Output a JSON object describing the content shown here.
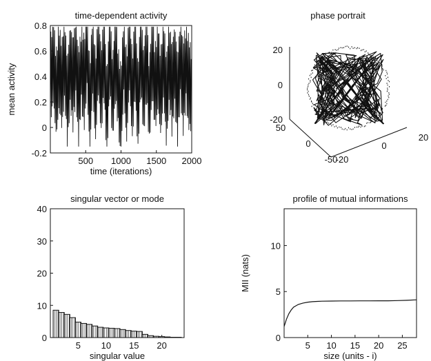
{
  "chart_data": [
    {
      "type": "line",
      "title": "time-dependent activity",
      "xlabel": "time (iterations)",
      "ylabel": "mean activity",
      "xlim": [
        0,
        2000
      ],
      "ylim": [
        -0.2,
        0.8
      ],
      "xticks": [
        500,
        1000,
        1500,
        2000
      ],
      "yticks": [
        -0.2,
        0,
        0.2,
        0.4,
        0.6,
        0.8
      ],
      "xtick_labels": [
        "500",
        "1000",
        "1500",
        "2000"
      ],
      "ytick_labels": [
        "-0.2",
        "0",
        "0.2",
        "0.4",
        "0.6",
        "0.8"
      ],
      "series": [
        {
          "description_points": "dense oscillating signal between about -0.15 and 0.8",
          "x": [
            0,
            40,
            80,
            120,
            160,
            200,
            240,
            280,
            320,
            360,
            400,
            440,
            480,
            520,
            560,
            600,
            640,
            680,
            720,
            760,
            800,
            840,
            880,
            920,
            960,
            1000,
            1040,
            1080,
            1120,
            1160,
            1200,
            1240,
            1280,
            1320,
            1360,
            1400,
            1440,
            1480,
            1520,
            1560,
            1600,
            1640,
            1680,
            1720,
            1760,
            1800,
            1840,
            1880,
            1920,
            1960,
            2000
          ],
          "values": [
            0.35,
            0.72,
            0.05,
            0.62,
            0.18,
            0.78,
            -0.1,
            0.66,
            0.22,
            0.74,
            0.02,
            0.6,
            0.3,
            0.77,
            -0.05,
            0.68,
            0.12,
            0.72,
            0.25,
            0.65,
            -0.12,
            0.75,
            0.08,
            0.7,
            0.2,
            -0.15,
            0.7,
            0.1,
            0.76,
            0.15,
            0.64,
            -0.02,
            0.73,
            0.2,
            0.68,
            0.0,
            0.75,
            0.18,
            0.62,
            0.05,
            0.78,
            -0.08,
            0.7,
            0.12,
            0.66,
            -0.05,
            0.74,
            0.2,
            0.6,
            0.3,
            0.1
          ]
        }
      ]
    },
    {
      "type": "scatter",
      "title": "phase portrait",
      "projection": "3d",
      "xlim": [
        -50,
        20
      ],
      "ylim": [
        -50,
        20
      ],
      "zlim": [
        -20,
        20
      ],
      "z_tick_labels": [
        "20",
        "0",
        "-20"
      ],
      "x_tick_labels": [
        "50",
        "0",
        "-50"
      ],
      "y_tick_labels": [
        "-20",
        "0",
        "20"
      ],
      "description_points": "dense tangled trajectory forming a roughly spherical cloud"
    },
    {
      "type": "bar",
      "title": "singular vector or mode",
      "xlabel": "singular value",
      "ylabel": "",
      "xlim": [
        0,
        24
      ],
      "ylim": [
        0,
        40
      ],
      "xticks": [
        5,
        10,
        15,
        20
      ],
      "yticks": [
        0,
        10,
        20,
        30,
        40
      ],
      "xtick_labels": [
        "5",
        "10",
        "15",
        "20"
      ],
      "ytick_labels": [
        "0",
        "10",
        "20",
        "30",
        "40"
      ],
      "categories": [
        1,
        2,
        3,
        4,
        5,
        6,
        7,
        8,
        9,
        10,
        11,
        12,
        13,
        14,
        15,
        16,
        17,
        18,
        19,
        20,
        21,
        22,
        23
      ],
      "values": [
        8.5,
        7.8,
        7.2,
        6.2,
        4.8,
        4.4,
        4.1,
        3.6,
        3.2,
        3.0,
        2.9,
        2.8,
        2.5,
        2.2,
        2.0,
        1.9,
        1.0,
        0.6,
        0.4,
        0.3,
        0.2,
        0.1,
        0.1
      ]
    },
    {
      "type": "line",
      "title": "profile of mutual informations",
      "xlabel": "size (units - i)",
      "ylabel": "MII (nats)",
      "xlim": [
        0,
        28
      ],
      "ylim": [
        0,
        14
      ],
      "xticks": [
        5,
        10,
        15,
        20,
        25
      ],
      "yticks": [
        0,
        5,
        10
      ],
      "xtick_labels": [
        "5",
        "10",
        "15",
        "20",
        "25"
      ],
      "ytick_labels": [
        "0",
        "5",
        "10"
      ],
      "series": [
        {
          "x": [
            0,
            0.5,
            1,
            1.5,
            2,
            3,
            4,
            5,
            6,
            7,
            8,
            10,
            12,
            14,
            16,
            18,
            20,
            22,
            24,
            26,
            28
          ],
          "values": [
            1.2,
            2.0,
            2.6,
            3.0,
            3.3,
            3.6,
            3.75,
            3.85,
            3.9,
            3.93,
            3.95,
            3.97,
            3.98,
            3.98,
            3.99,
            3.99,
            4.0,
            4.0,
            4.02,
            4.05,
            4.1
          ]
        }
      ]
    }
  ]
}
